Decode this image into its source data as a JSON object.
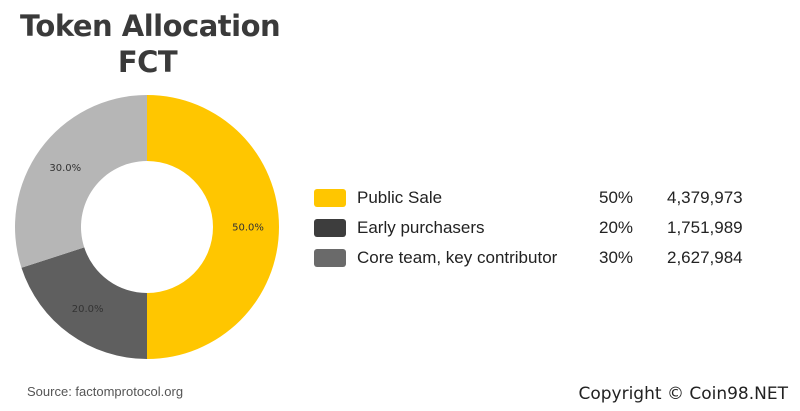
{
  "chart_data": {
    "type": "pie",
    "title": "Token Allocation",
    "subtitle": "FCT",
    "categories": [
      "Public Sale",
      "Early purchasers",
      "Core team, key contributor"
    ],
    "values": [
      50,
      20,
      30
    ],
    "slice_labels": [
      "50.0%",
      "20.0%",
      "30.0%"
    ],
    "colors": [
      "#FFC600",
      "#5F5F5F",
      "#B6B6B6"
    ],
    "donut": true,
    "legend_position": "right"
  },
  "legend": [
    {
      "label": "Public Sale",
      "percent": "50%",
      "amount": "4,379,973",
      "color": "#FFC600"
    },
    {
      "label": "Early purchasers",
      "percent": "20%",
      "amount": "1,751,989",
      "color": "#3D3D3D"
    },
    {
      "label": "Core team, key contributor",
      "percent": "30%",
      "amount": "2,627,984",
      "color": "#6A6A6A"
    }
  ],
  "source": "Source: factomprotocol.org",
  "copyright": "Copyright © Coin98.NET"
}
